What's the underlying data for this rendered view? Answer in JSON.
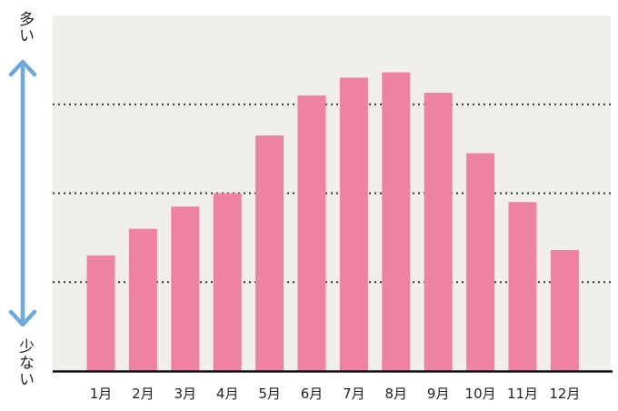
{
  "scale_labels": {
    "top": "多い",
    "bottom": "少ない"
  },
  "colors": {
    "bar": "#ee82a3",
    "background": "#f1efea",
    "baseline": "#111111",
    "arrow": "#6fa8dc",
    "gridline": "#333333"
  },
  "chart_data": {
    "type": "bar",
    "categories": [
      "1月",
      "2月",
      "3月",
      "4月",
      "5月",
      "6月",
      "7月",
      "8月",
      "9月",
      "10月",
      "11月",
      "12月"
    ],
    "values": [
      1.3,
      1.6,
      1.85,
      2.0,
      2.65,
      3.1,
      3.3,
      3.36,
      3.13,
      2.45,
      1.9,
      1.36
    ],
    "title": "",
    "xlabel": "",
    "ylabel": "",
    "ylim": [
      0,
      4
    ],
    "yticks_shown": false,
    "grid": {
      "y": true,
      "style": "dotted",
      "values": [
        1,
        2,
        3
      ]
    },
    "legend": "none"
  }
}
